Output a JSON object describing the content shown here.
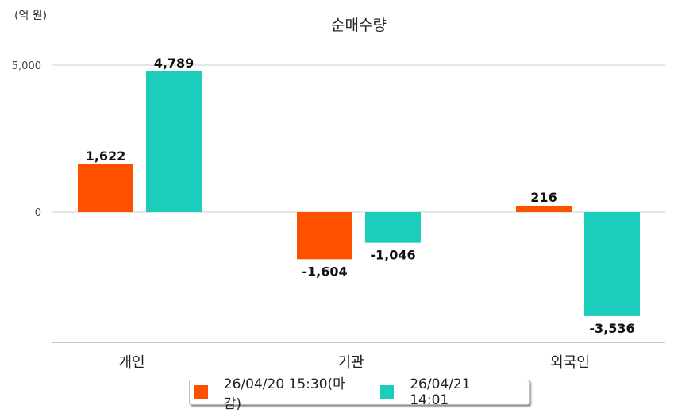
{
  "chart_data": {
    "type": "bar",
    "title": "순매수량",
    "unit_label": "(억 원)",
    "categories": [
      "개인",
      "기관",
      "외국인"
    ],
    "series": [
      {
        "name": "26/04/20 15:30(마감)",
        "color": "#ff5000",
        "values": [
          1622,
          -1604,
          216
        ],
        "labels": [
          "1,622",
          "-1,604",
          "216"
        ]
      },
      {
        "name": "26/04/21 14:01",
        "color": "#1dcdbc",
        "values": [
          4789,
          -1046,
          -3536
        ],
        "labels": [
          "4,789",
          "-1,046",
          "-3,536"
        ]
      }
    ],
    "yticks": [
      0,
      5000
    ],
    "ytick_labels": [
      "0",
      "5,000"
    ],
    "ylim": [
      -4450,
      5400
    ],
    "grid": true,
    "legend": "bottom-center"
  }
}
